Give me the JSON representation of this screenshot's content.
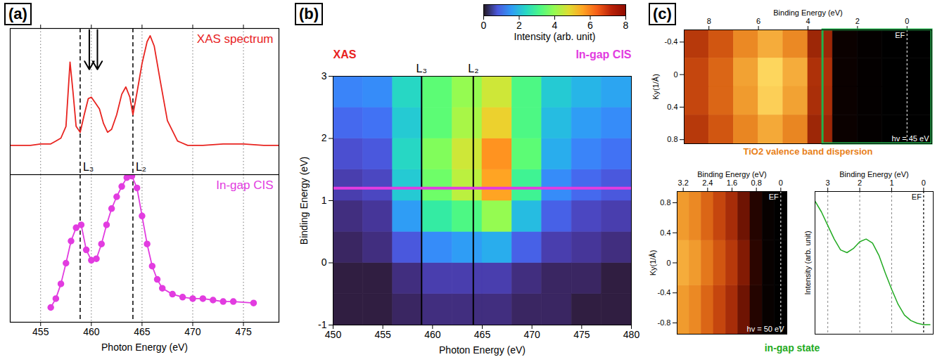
{
  "chart_data": [
    {
      "panel": "(a)",
      "type": "line",
      "xlabel": "Photon Energy (eV)",
      "xlim": [
        452,
        478.5
      ],
      "xticks": [
        455,
        460,
        465,
        470,
        475
      ],
      "grid": true,
      "tick_labels": "x",
      "reference_lines": [
        {
          "value": 458.9,
          "label": "L₃"
        },
        {
          "value": 464.1,
          "label": "L₂"
        }
      ],
      "arrows_x": [
        459.8,
        460.6
      ],
      "series": [
        {
          "name": "XAS spectrum",
          "color": "#e8231f",
          "ylim": [
            0,
            10
          ],
          "x": [
            452,
            454,
            455,
            456,
            456.5,
            457,
            457.5,
            457.9,
            458.2,
            458.5,
            458.9,
            459.3,
            459.7,
            460.0,
            460.4,
            460.8,
            461.2,
            461.6,
            462.0,
            462.5,
            463.0,
            463.4,
            463.8,
            464.1,
            464.5,
            465.0,
            465.5,
            465.8,
            466.2,
            466.8,
            467.5,
            468.5,
            469.5,
            471,
            473,
            475,
            477,
            478.5
          ],
          "values": [
            2.0,
            2.0,
            2.1,
            2.1,
            2.3,
            2.5,
            3.3,
            7.7,
            5.6,
            3.3,
            2.9,
            4.1,
            5.2,
            5.3,
            4.9,
            4.5,
            3.5,
            2.9,
            3.1,
            4.1,
            5.5,
            6.0,
            5.3,
            4.1,
            5.6,
            7.6,
            9.1,
            9.5,
            8.8,
            6.4,
            3.7,
            2.3,
            2.0,
            2.0,
            2.1,
            2.1,
            2.0,
            2.0
          ]
        },
        {
          "name": "In-gap CIS",
          "color": "#e23ce0",
          "marker": "circle",
          "ylim": [
            0,
            10
          ],
          "x": [
            456,
            456.5,
            457,
            457.5,
            458,
            458.5,
            459,
            459.5,
            460,
            460.5,
            461,
            461.5,
            462,
            462.5,
            463,
            463.5,
            464,
            464.5,
            465,
            465.5,
            466,
            466.5,
            467,
            468,
            469,
            470,
            471,
            472,
            473,
            474,
            476
          ],
          "values": [
            1.0,
            1.6,
            2.6,
            4.0,
            5.5,
            6.4,
            6.6,
            4.9,
            4.2,
            4.3,
            5.3,
            6.6,
            7.7,
            8.5,
            9.2,
            9.8,
            9.9,
            9.1,
            7.2,
            5.3,
            3.8,
            2.9,
            2.3,
            1.9,
            1.7,
            1.6,
            1.6,
            1.5,
            1.4,
            1.4,
            1.3
          ]
        }
      ]
    },
    {
      "panel": "(b)",
      "type": "heatmap",
      "xlabel": "Photon Energy (eV)",
      "ylabel": "Binding Energy (eV)",
      "xlim": [
        450,
        480
      ],
      "xticks": [
        450,
        455,
        460,
        465,
        470,
        475,
        480
      ],
      "ylim": [
        -1,
        3
      ],
      "yticks": [
        -1,
        0,
        1,
        2,
        3
      ],
      "x_bins": [
        450,
        453,
        456,
        459,
        462,
        465,
        468,
        471,
        474,
        477,
        480
      ],
      "y_bins": [
        -1,
        -0.5,
        0,
        0.5,
        1,
        1.5,
        2,
        2.5,
        3
      ],
      "cells": [
        [
          0.1,
          0.1,
          0.2,
          0.3,
          0.3,
          0.3,
          0.2,
          0.2,
          0.1,
          0.1
        ],
        [
          0.1,
          0.1,
          0.3,
          0.5,
          0.5,
          0.5,
          0.3,
          0.2,
          0.2,
          0.1
        ],
        [
          0.2,
          0.3,
          0.8,
          1.4,
          1.6,
          1.8,
          0.9,
          0.5,
          0.4,
          0.3
        ],
        [
          0.3,
          0.4,
          1.6,
          2.8,
          3.2,
          4.0,
          2.0,
          0.9,
          0.6,
          0.5
        ],
        [
          0.5,
          0.6,
          2.2,
          3.6,
          4.4,
          5.6,
          3.0,
          1.4,
          1.0,
          0.8
        ],
        [
          0.7,
          0.8,
          2.4,
          3.8,
          4.6,
          5.8,
          3.4,
          1.8,
          1.3,
          1.1
        ],
        [
          1.0,
          1.1,
          2.2,
          3.4,
          4.2,
          5.0,
          3.2,
          2.0,
          1.6,
          1.4
        ],
        [
          1.3,
          1.4,
          2.4,
          3.4,
          4.0,
          4.6,
          3.2,
          2.2,
          1.9,
          1.7
        ]
      ],
      "colorbar": {
        "label": "Intensity (arb. unit)",
        "lim": [
          0,
          8
        ],
        "ticks": [
          0,
          2,
          4,
          6,
          8
        ]
      },
      "reference_lines": [
        {
          "value": 458.9,
          "label": "L₃"
        },
        {
          "value": 464.1,
          "label": "L₂"
        }
      ],
      "annotations": [
        {
          "text": "XAS",
          "color": "#e8231f"
        }
      ],
      "cis_line": {
        "name": "In-gap CIS",
        "binding_energy": 1.2,
        "color": "#e23ce0"
      }
    },
    {
      "panel": "(c)",
      "type": "heatmap",
      "xlabel": "Binding Energy (eV)",
      "ylabel": "Ky(1/Å)",
      "xlim": [
        9,
        -1
      ],
      "xticks": [
        8,
        6,
        4,
        2,
        0
      ],
      "ylim": [
        -0.55,
        0.85
      ],
      "yticks": [
        -0.4,
        0,
        0.4,
        0.8
      ],
      "x_bins": [
        9,
        8,
        7,
        6,
        5,
        4,
        3,
        2,
        1,
        0,
        -1
      ],
      "y_bins": [
        -0.55,
        -0.2,
        0.15,
        0.5,
        0.85
      ],
      "cells": [
        [
          0.5,
          0.6,
          0.75,
          0.85,
          0.75,
          0.42,
          0.03,
          0.01,
          0,
          0
        ],
        [
          0.55,
          0.65,
          0.82,
          0.97,
          0.85,
          0.47,
          0.03,
          0.01,
          0,
          0
        ],
        [
          0.55,
          0.65,
          0.8,
          0.95,
          0.82,
          0.46,
          0.03,
          0.01,
          0,
          0
        ],
        [
          0.5,
          0.6,
          0.74,
          0.84,
          0.74,
          0.42,
          0.03,
          0.01,
          0,
          0
        ]
      ],
      "color_range": [
        0,
        1
      ],
      "fermi_level": {
        "value": 0,
        "label": "EF"
      },
      "annotation": "hv = 45 eV",
      "inset_box": [
        3.4,
        -1
      ],
      "inset_box_color": "#22b14c",
      "caption": "TiO2 valence band dispersion",
      "caption_color": "#e8801a"
    },
    {
      "type": "heatmap",
      "xlabel": "Binding Energy (eV)",
      "ylabel": "Ky(1/Å)",
      "xlim": [
        3.4,
        -0.2
      ],
      "xticks": [
        3.2,
        2.4,
        1.6,
        0.8,
        0
      ],
      "ylim": [
        -0.95,
        0.95
      ],
      "yticks": [
        -0.8,
        -0.4,
        0,
        0.4,
        0.8
      ],
      "x_bins": [
        3.4,
        3.0,
        2.6,
        2.2,
        1.8,
        1.4,
        1.0,
        0.6,
        0.2,
        -0.2
      ],
      "y_bins": [
        -0.95,
        -0.3,
        0.3,
        0.95
      ],
      "cells": [
        [
          0.8,
          0.75,
          0.65,
          0.55,
          0.45,
          0.3,
          0.1,
          0.02,
          0
        ],
        [
          0.85,
          0.8,
          0.7,
          0.6,
          0.5,
          0.35,
          0.12,
          0.02,
          0
        ],
        [
          0.8,
          0.75,
          0.65,
          0.55,
          0.45,
          0.3,
          0.1,
          0.02,
          0
        ]
      ],
      "color_range": [
        0,
        1
      ],
      "fermi_level": {
        "value": 0,
        "label": "EF"
      },
      "annotation": "hv = 50 eV"
    },
    {
      "type": "line",
      "xlabel": "Binding Energy (eV)",
      "ylabel": "Intensity (arb. unit)",
      "xlim": [
        3.4,
        -0.3
      ],
      "xticks": [
        3,
        2,
        1,
        0
      ],
      "ylim": [
        0,
        1.05
      ],
      "grid": true,
      "tick_labels": "x",
      "fermi_level": {
        "value": 0,
        "label": "EF"
      },
      "caption": "in-gap state",
      "caption_color": "#22aa22",
      "series": [
        {
          "color": "#22aa22",
          "x": [
            3.4,
            3.2,
            3.0,
            2.8,
            2.6,
            2.4,
            2.2,
            2.0,
            1.8,
            1.6,
            1.4,
            1.2,
            1.0,
            0.8,
            0.6,
            0.4,
            0.2,
            0.0,
            -0.2
          ],
          "values": [
            0.98,
            0.9,
            0.8,
            0.7,
            0.62,
            0.6,
            0.63,
            0.68,
            0.7,
            0.67,
            0.58,
            0.45,
            0.33,
            0.22,
            0.14,
            0.1,
            0.08,
            0.07,
            0.07
          ]
        }
      ]
    }
  ]
}
